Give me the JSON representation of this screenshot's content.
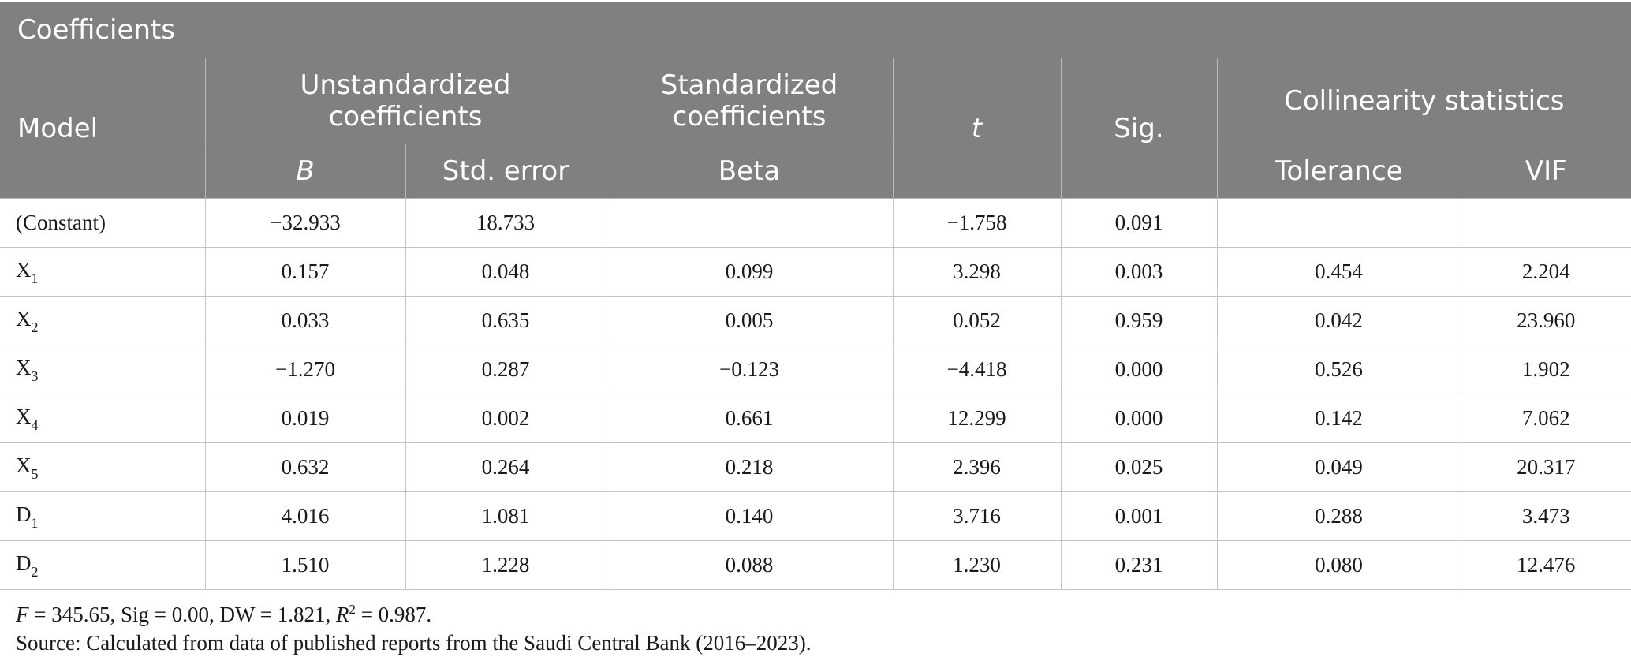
{
  "table": {
    "title": "Coefficients",
    "headers": {
      "model": "Model",
      "unstandardized": "Unstandardized coefficients",
      "standardized": "Standardized coefficients",
      "t": "t",
      "sig": "Sig.",
      "collinearity": "Collinearity statistics",
      "b": "B",
      "std_error": "Std. error",
      "beta": "Beta",
      "tolerance": "Tolerance",
      "vif": "VIF"
    },
    "rows": [
      {
        "label": "(Constant)",
        "sub": "",
        "b": "−32.933",
        "se": "18.733",
        "beta": "",
        "t": "−1.758",
        "sig": "0.091",
        "tol": "",
        "vif": ""
      },
      {
        "label": "X",
        "sub": "1",
        "b": "0.157",
        "se": "0.048",
        "beta": "0.099",
        "t": "3.298",
        "sig": "0.003",
        "tol": "0.454",
        "vif": "2.204"
      },
      {
        "label": "X",
        "sub": "2",
        "b": "0.033",
        "se": "0.635",
        "beta": "0.005",
        "t": "0.052",
        "sig": "0.959",
        "tol": "0.042",
        "vif": "23.960"
      },
      {
        "label": "X",
        "sub": "3",
        "b": "−1.270",
        "se": "0.287",
        "beta": "−0.123",
        "t": "−4.418",
        "sig": "0.000",
        "tol": "0.526",
        "vif": "1.902"
      },
      {
        "label": "X",
        "sub": "4",
        "b": "0.019",
        "se": "0.002",
        "beta": "0.661",
        "t": "12.299",
        "sig": "0.000",
        "tol": "0.142",
        "vif": "7.062"
      },
      {
        "label": "X",
        "sub": "5",
        "b": "0.632",
        "se": "0.264",
        "beta": "0.218",
        "t": "2.396",
        "sig": "0.025",
        "tol": "0.049",
        "vif": "20.317"
      },
      {
        "label": "D",
        "sub": "1",
        "b": "4.016",
        "se": "1.081",
        "beta": "0.140",
        "t": "3.716",
        "sig": "0.001",
        "tol": "0.288",
        "vif": "3.473"
      },
      {
        "label": "D",
        "sub": "2",
        "b": "1.510",
        "se": "1.228",
        "beta": "0.088",
        "t": "1.230",
        "sig": "0.231",
        "tol": "0.080",
        "vif": "12.476"
      }
    ]
  },
  "notes": {
    "stats": {
      "f_symbol": "F",
      "f_part": " = 345.65, Sig = 0.00, DW = 1.821, ",
      "r_symbol": "R",
      "r_power": "2",
      "r_part": " = 0.987."
    },
    "source": "Source: Calculated from data of published reports from the Saudi Central Bank (2016–2023)."
  }
}
